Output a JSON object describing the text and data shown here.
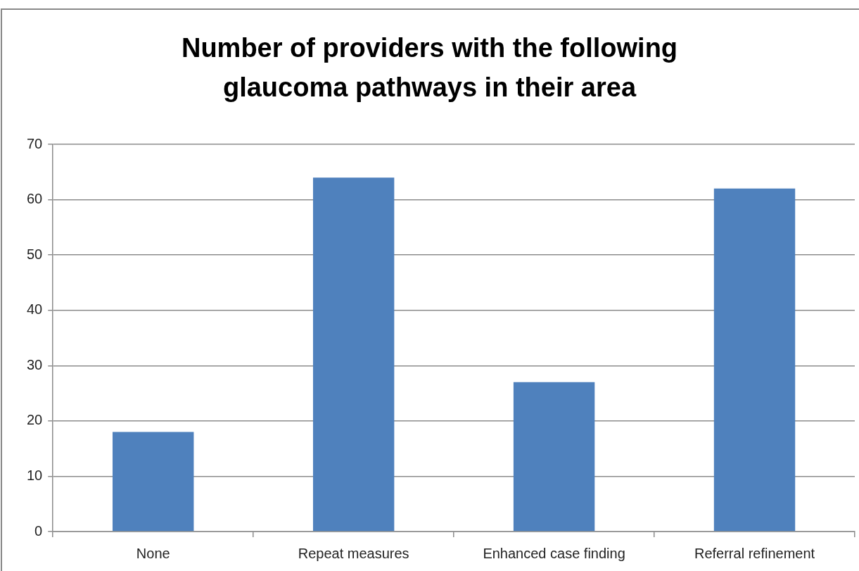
{
  "chart_data": {
    "type": "bar",
    "title": "Number of providers with the following glaucoma pathways in their area",
    "categories": [
      "None",
      "Repeat measures",
      "Enhanced case finding",
      "Referral refinement"
    ],
    "values": [
      18,
      64,
      27,
      62
    ],
    "color": "#4f81bd",
    "ylim": [
      0,
      70
    ],
    "yticks": [
      0,
      10,
      20,
      30,
      40,
      50,
      60,
      70
    ],
    "grid": "y"
  }
}
